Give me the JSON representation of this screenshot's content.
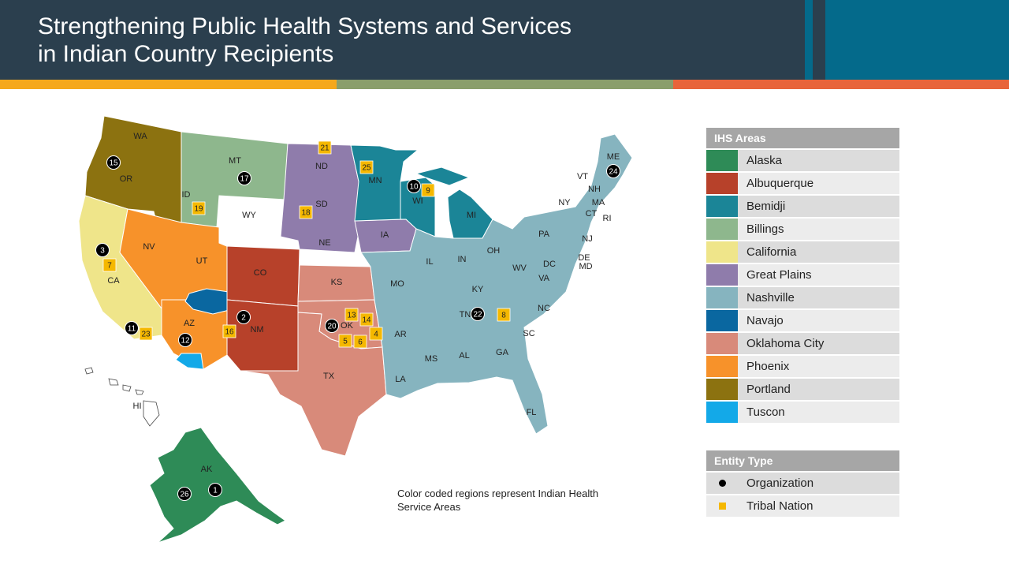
{
  "header": {
    "title": "Strengthening Public Health Systems and Services\nin Indian Country Recipients"
  },
  "colors": {
    "header_bg": "#2b3f4e",
    "header_block": "#046a8b",
    "stripe_yellow": "#f5a81c",
    "stripe_green": "#8a9e6b",
    "stripe_orange": "#e8643a",
    "organization": "#000000",
    "tribal_nation": "#f5b800"
  },
  "legend_areas": {
    "title": "IHS Areas",
    "items": [
      {
        "label": "Alaska",
        "color": "#2e8b57"
      },
      {
        "label": "Albuquerque",
        "color": "#b7412a"
      },
      {
        "label": "Bemidji",
        "color": "#1b8597"
      },
      {
        "label": "Billings",
        "color": "#8eb78d"
      },
      {
        "label": "California",
        "color": "#efe58a"
      },
      {
        "label": "Great Plains",
        "color": "#8f7cab"
      },
      {
        "label": "Nashville",
        "color": "#86b4bf"
      },
      {
        "label": "Navajo",
        "color": "#0a67a0"
      },
      {
        "label": "Oklahoma City",
        "color": "#d88a7a"
      },
      {
        "label": "Phoenix",
        "color": "#f7922a"
      },
      {
        "label": "Portland",
        "color": "#8c7210"
      },
      {
        "label": "Tuscon",
        "color": "#13a9e8"
      }
    ]
  },
  "legend_entities": {
    "title": "Entity Type",
    "items": [
      {
        "label": "Organization",
        "symbol": "circle"
      },
      {
        "label": "Tribal Nation",
        "symbol": "square"
      }
    ]
  },
  "map_note": "Color coded regions represent Indian Health Service Areas",
  "state_labels": [
    "WA",
    "OR",
    "ID",
    "MT",
    "WY",
    "ND",
    "SD",
    "NE",
    "MN",
    "WI",
    "MI",
    "IA",
    "NV",
    "UT",
    "CO",
    "CA",
    "AZ",
    "NM",
    "KS",
    "OK",
    "TX",
    "MO",
    "AR",
    "LA",
    "IL",
    "IN",
    "OH",
    "KY",
    "TN",
    "MS",
    "AL",
    "GA",
    "FL",
    "SC",
    "NC",
    "VA",
    "WV",
    "PA",
    "NY",
    "VT",
    "NH",
    "ME",
    "MA",
    "CT",
    "RI",
    "NJ",
    "DE",
    "MD",
    "DC",
    "AK",
    "HI"
  ],
  "markers": {
    "organizations": [
      "15",
      "17",
      "3",
      "11",
      "12",
      "2",
      "20",
      "10",
      "22",
      "24",
      "1",
      "26"
    ],
    "tribal_nations": [
      "21",
      "25",
      "9",
      "19",
      "18",
      "7",
      "23",
      "16",
      "13",
      "14",
      "5",
      "6",
      "4",
      "8"
    ]
  }
}
